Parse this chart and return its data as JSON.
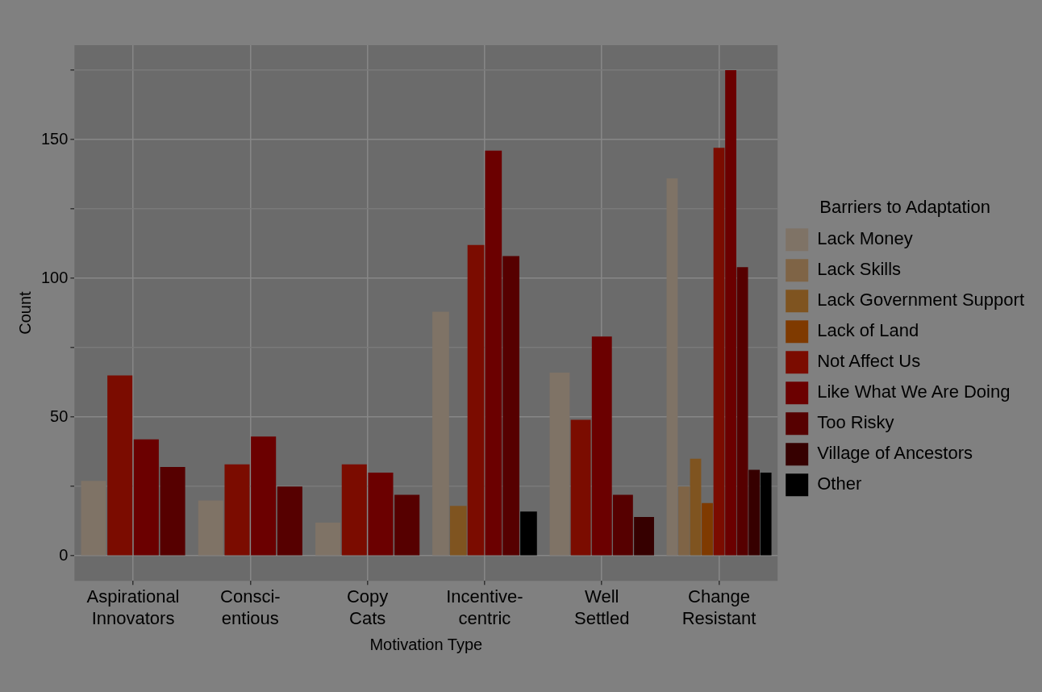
{
  "chart_data": {
    "type": "bar",
    "xlabel": "Motivation Type",
    "ylabel": "Count",
    "legend_title": "Barriers to Adaptation",
    "legend": "right",
    "grid": true,
    "categories": [
      "Aspirational\nInnovators",
      "Consci-\nentious",
      "Copy\nCats",
      "Incentive-\ncentric",
      "Well\nSettled",
      "Change\nResistant"
    ],
    "ylim": [
      -9,
      184
    ],
    "yticks": [
      0,
      {
        "value": 25,
        "label": null
      },
      50,
      {
        "value": 75,
        "label": null
      },
      100,
      {
        "value": 125,
        "label": null
      },
      150,
      {
        "value": 175,
        "label": null
      }
    ],
    "series": [
      {
        "name": "Lack Money",
        "color": "#7f7366",
        "values": [
          27,
          20,
          12,
          88,
          66,
          136
        ]
      },
      {
        "name": "Lack Skills",
        "color": "#7f6446",
        "values": [
          null,
          null,
          null,
          null,
          null,
          25
        ]
      },
      {
        "name": "Lack Government Support",
        "color": "#7f5420",
        "values": [
          null,
          null,
          null,
          18,
          null,
          35
        ]
      },
      {
        "name": "Lack of Land",
        "color": "#7f3a00",
        "values": [
          null,
          null,
          null,
          null,
          null,
          19
        ]
      },
      {
        "name": "Not Affect Us",
        "color": "#7b0c00",
        "values": [
          65,
          33,
          33,
          112,
          49,
          147
        ]
      },
      {
        "name": "Like What We Are Doing",
        "color": "#6b0000",
        "values": [
          42,
          43,
          30,
          146,
          79,
          175
        ]
      },
      {
        "name": "Too Risky",
        "color": "#560000",
        "values": [
          32,
          25,
          22,
          108,
          22,
          104
        ]
      },
      {
        "name": "Village of Ancestors",
        "color": "#360000",
        "values": [
          null,
          null,
          null,
          null,
          14,
          31
        ]
      },
      {
        "name": "Other",
        "color": "#000000",
        "values": [
          null,
          null,
          null,
          16,
          null,
          30
        ]
      }
    ]
  }
}
